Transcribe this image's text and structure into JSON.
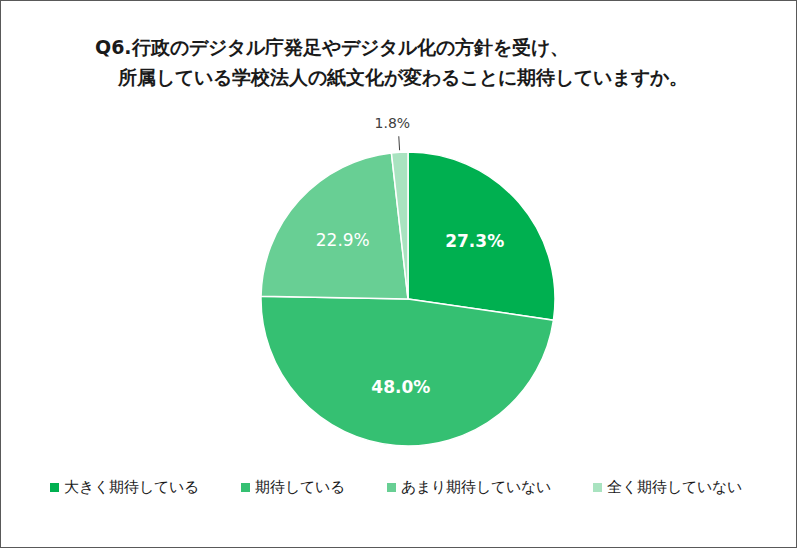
{
  "chart_data": {
    "type": "pie",
    "title": "Q6.行政のデジタル庁発足やデジタル化の方針を受け、\n所属している学校法人の紙文化が変わることに期待していますか。",
    "categories": [
      "大きく期待している",
      "期待している",
      "あまり期待していない",
      "全く期待していない"
    ],
    "values": [
      27.3,
      48.0,
      22.9,
      1.8
    ],
    "value_labels": [
      "27.3%",
      "48.0%",
      "22.9%",
      "1.8%"
    ],
    "colors": [
      "#00b050",
      "#35c072",
      "#68cf94",
      "#a9e3c0"
    ],
    "data_labels": true,
    "legend": "bottom"
  }
}
